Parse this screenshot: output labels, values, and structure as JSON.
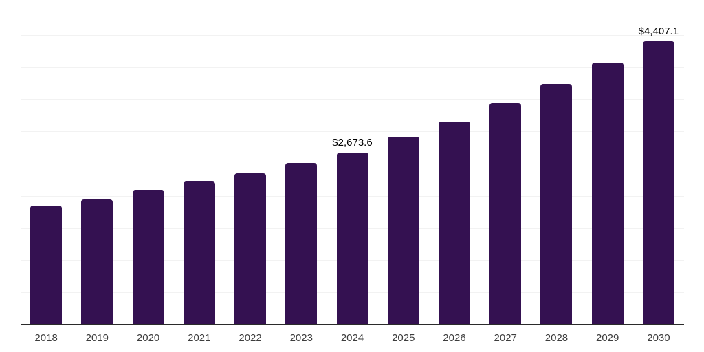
{
  "chart_data": {
    "type": "bar",
    "title": "",
    "xlabel": "",
    "ylabel": "",
    "categories": [
      "2018",
      "2019",
      "2020",
      "2021",
      "2022",
      "2023",
      "2024",
      "2025",
      "2026",
      "2027",
      "2028",
      "2029",
      "2030"
    ],
    "values": [
      1845,
      1944,
      2080,
      2219,
      2354,
      2514,
      2673.6,
      2917,
      3155,
      3437,
      3739,
      4071,
      4407.1
    ],
    "point_labels": [
      "",
      "",
      "",
      "",
      "",
      "",
      "$2,673.6",
      "",
      "",
      "",
      "",
      "",
      "$4,407.1"
    ],
    "ylim": [
      0,
      5000
    ],
    "gridline_interval": 500,
    "grid": "horizontal-only",
    "y_axis_tick_labels": "none",
    "legend": "none",
    "bar_color": "#341151",
    "gridline_color": "#f2f2f2",
    "axis_line_color": "#2b2b2b",
    "x_label_color": "#3d3d3d",
    "point_label_color": "#000000",
    "background_color": "#ffffff"
  }
}
